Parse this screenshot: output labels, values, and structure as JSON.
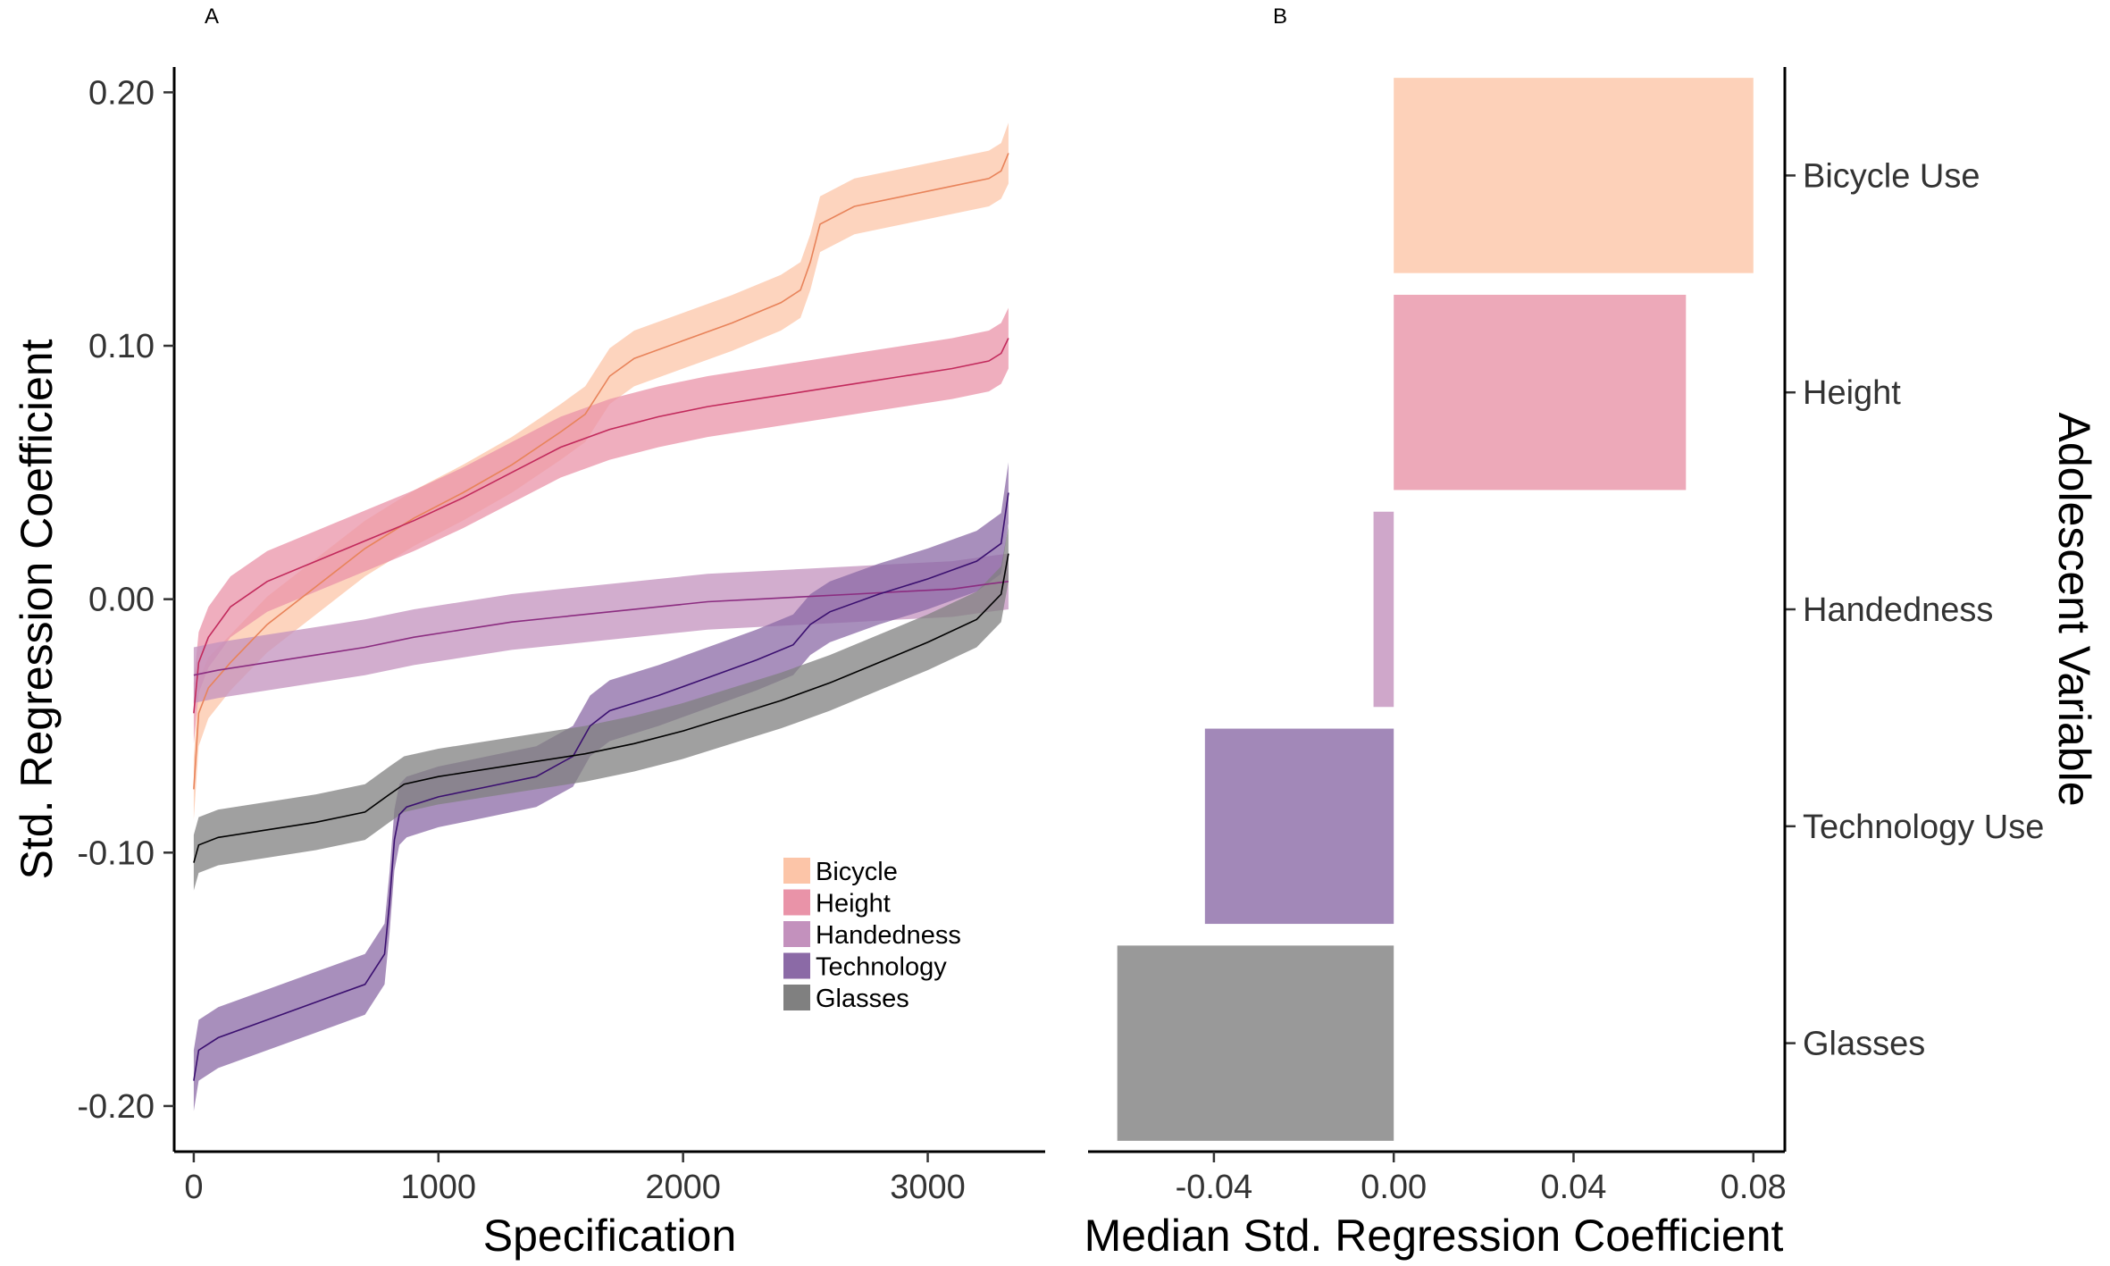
{
  "chart_data": [
    {
      "type": "area",
      "panel_label": "A",
      "xlabel": "Specification",
      "ylabel": "Std. Regression Coefficient",
      "xlim": [
        -80,
        3480
      ],
      "ylim": [
        -0.218,
        0.21
      ],
      "x_ticks": [
        0,
        1000,
        2000,
        3000
      ],
      "x_tick_labels": [
        "0",
        "1000",
        "2000",
        "3000"
      ],
      "y_ticks": [
        -0.2,
        -0.1,
        0.0,
        0.1,
        0.2
      ],
      "y_tick_labels": [
        "-0.20",
        "-0.10",
        "0.00",
        "0.10",
        "0.20"
      ],
      "grid": false,
      "legend_position": "bottom-right",
      "series": [
        {
          "name": "Bicycle",
          "color": "#fcc5a8",
          "line_color": "#e8835a",
          "x": [
            0,
            20,
            60,
            150,
            300,
            500,
            700,
            900,
            1100,
            1300,
            1500,
            1600,
            1700,
            1800,
            2000,
            2200,
            2400,
            2480,
            2520,
            2560,
            2700,
            2900,
            3100,
            3250,
            3300,
            3330
          ],
          "y": [
            -0.075,
            -0.045,
            -0.035,
            -0.025,
            -0.01,
            0.005,
            0.02,
            0.032,
            0.042,
            0.053,
            0.066,
            0.073,
            0.088,
            0.095,
            0.102,
            0.109,
            0.117,
            0.122,
            0.133,
            0.148,
            0.155,
            0.159,
            0.163,
            0.166,
            0.169,
            0.176
          ],
          "band": [
            0.012,
            0.013,
            0.012,
            0.011,
            0.011,
            0.011,
            0.011,
            0.011,
            0.011,
            0.011,
            0.011,
            0.011,
            0.011,
            0.011,
            0.011,
            0.011,
            0.011,
            0.011,
            0.011,
            0.011,
            0.011,
            0.011,
            0.011,
            0.011,
            0.011,
            0.012
          ]
        },
        {
          "name": "Height",
          "color": "#e993a8",
          "line_color": "#c22a5c",
          "x": [
            0,
            20,
            60,
            150,
            300,
            500,
            700,
            900,
            1100,
            1300,
            1500,
            1700,
            1900,
            2100,
            2300,
            2500,
            2700,
            2900,
            3100,
            3250,
            3300,
            3330
          ],
          "y": [
            -0.045,
            -0.025,
            -0.015,
            -0.003,
            0.007,
            0.015,
            0.023,
            0.031,
            0.04,
            0.05,
            0.06,
            0.067,
            0.072,
            0.076,
            0.079,
            0.082,
            0.085,
            0.088,
            0.091,
            0.094,
            0.097,
            0.103
          ],
          "band": [
            0.012,
            0.012,
            0.012,
            0.012,
            0.012,
            0.012,
            0.012,
            0.012,
            0.012,
            0.012,
            0.012,
            0.012,
            0.012,
            0.012,
            0.012,
            0.012,
            0.012,
            0.012,
            0.012,
            0.012,
            0.012,
            0.012
          ]
        },
        {
          "name": "Handedness",
          "color": "#c391bd",
          "line_color": "#8b2c80",
          "x": [
            0,
            100,
            300,
            500,
            700,
            900,
            1100,
            1300,
            1500,
            1700,
            1900,
            2100,
            2300,
            2500,
            2700,
            2900,
            3100,
            3250,
            3330
          ],
          "y": [
            -0.03,
            -0.028,
            -0.025,
            -0.022,
            -0.019,
            -0.015,
            -0.012,
            -0.009,
            -0.007,
            -0.005,
            -0.003,
            -0.001,
            0.0,
            0.001,
            0.002,
            0.003,
            0.004,
            0.006,
            0.007
          ],
          "band": [
            0.011,
            0.011,
            0.011,
            0.011,
            0.011,
            0.011,
            0.011,
            0.011,
            0.011,
            0.011,
            0.011,
            0.011,
            0.011,
            0.011,
            0.011,
            0.011,
            0.011,
            0.011,
            0.011
          ]
        },
        {
          "name": "Technology",
          "color": "#8b6aa6",
          "line_color": "#3b1070",
          "x": [
            0,
            20,
            100,
            300,
            500,
            700,
            780,
            800,
            820,
            840,
            870,
            1000,
            1200,
            1400,
            1550,
            1620,
            1700,
            1900,
            2100,
            2300,
            2450,
            2520,
            2600,
            2800,
            3000,
            3200,
            3300,
            3330
          ],
          "y": [
            -0.19,
            -0.178,
            -0.173,
            -0.166,
            -0.159,
            -0.152,
            -0.14,
            -0.12,
            -0.095,
            -0.085,
            -0.082,
            -0.078,
            -0.074,
            -0.07,
            -0.062,
            -0.05,
            -0.044,
            -0.038,
            -0.031,
            -0.024,
            -0.018,
            -0.01,
            -0.005,
            0.002,
            0.008,
            0.015,
            0.022,
            0.042
          ],
          "band": [
            0.012,
            0.012,
            0.012,
            0.012,
            0.012,
            0.012,
            0.012,
            0.012,
            0.012,
            0.012,
            0.012,
            0.012,
            0.012,
            0.012,
            0.012,
            0.012,
            0.012,
            0.012,
            0.012,
            0.012,
            0.012,
            0.012,
            0.012,
            0.012,
            0.012,
            0.012,
            0.012,
            0.012
          ]
        },
        {
          "name": "Glasses",
          "color": "#808080",
          "line_color": "#000000",
          "x": [
            0,
            20,
            100,
            300,
            500,
            700,
            800,
            860,
            1000,
            1200,
            1400,
            1600,
            1800,
            2000,
            2200,
            2400,
            2600,
            2800,
            3000,
            3200,
            3300,
            3330
          ],
          "y": [
            -0.104,
            -0.097,
            -0.094,
            -0.091,
            -0.088,
            -0.084,
            -0.077,
            -0.073,
            -0.07,
            -0.067,
            -0.064,
            -0.061,
            -0.057,
            -0.052,
            -0.046,
            -0.04,
            -0.033,
            -0.025,
            -0.017,
            -0.008,
            0.002,
            0.018
          ],
          "band": [
            0.011,
            0.011,
            0.011,
            0.011,
            0.011,
            0.011,
            0.011,
            0.011,
            0.011,
            0.011,
            0.011,
            0.011,
            0.011,
            0.011,
            0.011,
            0.011,
            0.011,
            0.011,
            0.011,
            0.011,
            0.011,
            0.011
          ]
        }
      ]
    },
    {
      "type": "bar",
      "orientation": "horizontal",
      "panel_label": "B",
      "xlabel": "Median Std. Regression Coefficient",
      "ylabel": "Adolescent Variable",
      "ylabel_position": "right",
      "xlim": [
        -0.068,
        0.087
      ],
      "x_ticks": [
        -0.04,
        0.0,
        0.04,
        0.08
      ],
      "x_tick_labels": [
        "-0.04",
        "0.00",
        "0.04",
        "0.08"
      ],
      "grid": false,
      "categories": [
        "Bicycle Use",
        "Height",
        "Handedness",
        "Technology Use",
        "Glasses"
      ],
      "values": [
        0.08,
        0.065,
        -0.0045,
        -0.042,
        -0.0615
      ],
      "colors": [
        "#fcc5a8",
        "#e993a8",
        "#c391bd",
        "#8b6aa6",
        "#808080"
      ],
      "bar_opacity": 0.8
    }
  ]
}
